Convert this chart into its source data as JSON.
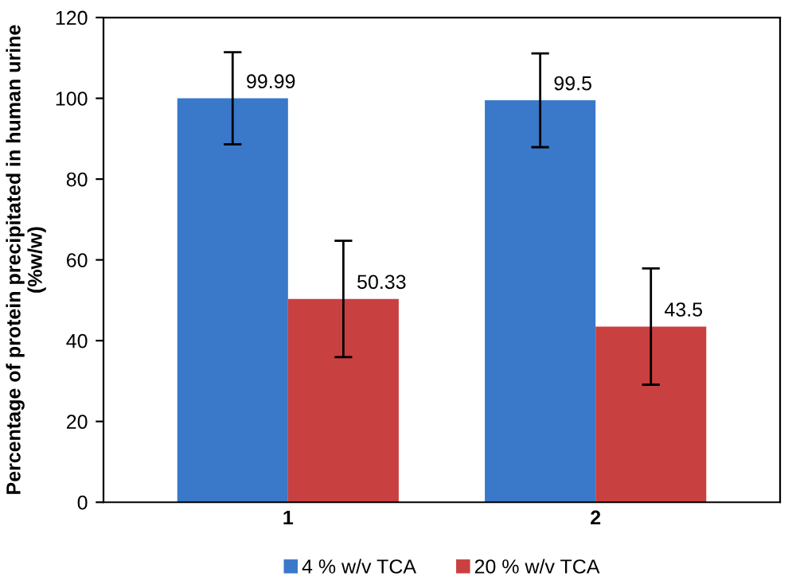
{
  "chart_data": {
    "type": "bar",
    "ylabel": "Percentage of protein precipitated in human urine (%w/w)",
    "categories": [
      "1",
      "2"
    ],
    "series": [
      {
        "name": "4 % w/v TCA",
        "color": "#3a78c9",
        "values": [
          99.99,
          99.5
        ],
        "errors": [
          11.4,
          11.6
        ]
      },
      {
        "name": "20 % w/v TCA",
        "color": "#c94040",
        "values": [
          50.33,
          43.5
        ],
        "errors": [
          14.4,
          14.4
        ]
      }
    ],
    "ylim": [
      0,
      120
    ],
    "yticks": [
      0,
      20,
      40,
      60,
      80,
      100,
      120
    ],
    "data_labels": true,
    "grid": false,
    "legend": "bottom"
  }
}
